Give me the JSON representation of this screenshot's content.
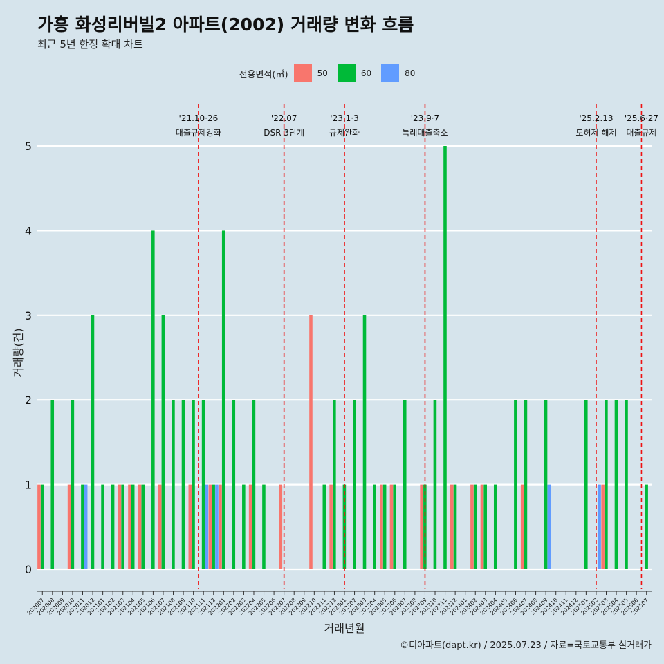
{
  "title": "가흥 화성리버빌2 아파트(2002) 거래량 변화 흐름",
  "subtitle": "최근 5년 한정 확대 차트",
  "caption": "©디아파트(dapt.kr) / 2025.07.23 / 자료=국토교통부 실거래가",
  "legend": {
    "title": "전용면적(㎡)",
    "items": [
      {
        "label": "50",
        "color": "#f8766d"
      },
      {
        "label": "60",
        "color": "#00ba38"
      },
      {
        "label": "80",
        "color": "#619cff"
      }
    ]
  },
  "chart_data": {
    "type": "bar",
    "xlabel": "거래년월",
    "ylabel": "거래량(건)",
    "ylim": [
      0,
      5
    ],
    "yticks": [
      0,
      1,
      2,
      3,
      4,
      5
    ],
    "grid": "horizontal",
    "legend_position": "top",
    "categories": [
      "202007",
      "202008",
      "202009",
      "202010",
      "202011",
      "202012",
      "202101",
      "202102",
      "202103",
      "202104",
      "202105",
      "202106",
      "202107",
      "202108",
      "202109",
      "202110",
      "202111",
      "202112",
      "202201",
      "202202",
      "202203",
      "202204",
      "202205",
      "202206",
      "202207",
      "202208",
      "202209",
      "202210",
      "202211",
      "202212",
      "202301",
      "202302",
      "202303",
      "202304",
      "202305",
      "202306",
      "202307",
      "202308",
      "202309",
      "202310",
      "202311",
      "202312",
      "202401",
      "202402",
      "202403",
      "202404",
      "202405",
      "202406",
      "202407",
      "202408",
      "202409",
      "202410",
      "202411",
      "202412",
      "202501",
      "202502",
      "202503",
      "202504",
      "202505",
      "202506",
      "202507"
    ],
    "series": [
      {
        "name": "50",
        "color": "#f8766d",
        "values": [
          1,
          0,
          0,
          1,
          0,
          0,
          0,
          0,
          1,
          1,
          1,
          0,
          1,
          0,
          0,
          1,
          0,
          1,
          1,
          0,
          0,
          1,
          0,
          0,
          1,
          0,
          0,
          3,
          0,
          1,
          0,
          0,
          0,
          0,
          1,
          1,
          0,
          0,
          1,
          0,
          0,
          1,
          0,
          1,
          1,
          0,
          0,
          0,
          1,
          0,
          0,
          0,
          0,
          0,
          0,
          0,
          1,
          0,
          0,
          0,
          0
        ]
      },
      {
        "name": "60",
        "color": "#00ba38",
        "values": [
          1,
          2,
          0,
          2,
          1,
          3,
          1,
          1,
          1,
          1,
          1,
          4,
          3,
          2,
          2,
          2,
          2,
          1,
          4,
          2,
          1,
          2,
          1,
          0,
          0,
          0,
          0,
          0,
          1,
          2,
          1,
          2,
          3,
          1,
          1,
          1,
          2,
          0,
          1,
          2,
          5,
          1,
          0,
          1,
          1,
          1,
          0,
          2,
          2,
          0,
          2,
          0,
          0,
          0,
          2,
          0,
          2,
          2,
          2,
          0,
          1
        ]
      },
      {
        "name": "80",
        "color": "#619cff",
        "values": [
          0,
          0,
          0,
          0,
          1,
          0,
          0,
          0,
          0,
          0,
          0,
          0,
          0,
          0,
          0,
          0,
          1,
          1,
          0,
          0,
          0,
          0,
          0,
          0,
          0,
          0,
          0,
          0,
          0,
          0,
          0,
          0,
          0,
          0,
          0,
          0,
          0,
          0,
          0,
          0,
          0,
          0,
          0,
          0,
          0,
          0,
          0,
          0,
          0,
          0,
          1,
          0,
          0,
          0,
          0,
          1,
          0,
          0,
          0,
          0,
          0
        ]
      }
    ],
    "events": [
      {
        "date_line1": "'21.10·26",
        "date_line2": "대출규제강화",
        "at": "202110",
        "offset": 0.5
      },
      {
        "date_line1": "'22.07",
        "date_line2": "DSR 3단계",
        "at": "202207",
        "offset": 0.0
      },
      {
        "date_line1": "'23.1·3",
        "date_line2": "규제완화",
        "at": "202301",
        "offset": 0.0
      },
      {
        "date_line1": "'23.9·7",
        "date_line2": "특례대출축소",
        "at": "202309",
        "offset": 0.0
      },
      {
        "date_line1": "'25.2.13",
        "date_line2": "토허제 해제",
        "at": "202502",
        "offset": 0.0
      },
      {
        "date_line1": "'25.6·27",
        "date_line2": "대출규제",
        "at": "202506",
        "offset": 0.5
      }
    ]
  }
}
